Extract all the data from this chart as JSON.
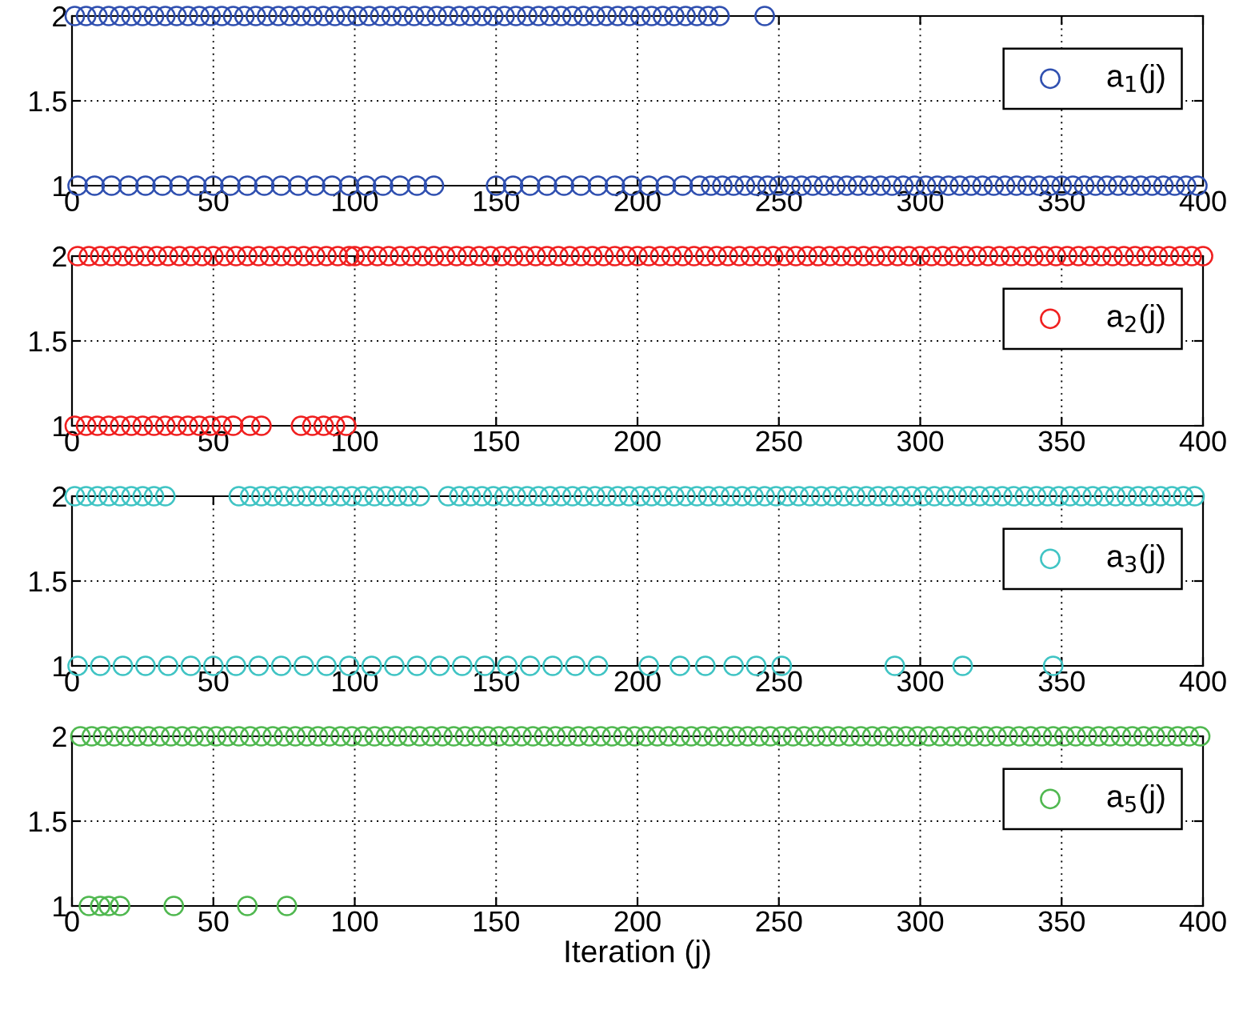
{
  "chart_data": [
    {
      "type": "scatter",
      "marker": "circle",
      "grid": true,
      "legend": "top right",
      "xlim": [
        0,
        400
      ],
      "xticks": [
        0,
        50,
        100,
        150,
        200,
        250,
        300,
        350,
        400
      ],
      "ylim": [
        1,
        2
      ],
      "yticks": [
        1,
        1.5,
        2
      ],
      "series": [
        {
          "name": "a$_{1}$(j)",
          "color": "#3050b0",
          "x": [
            1,
            5,
            9,
            13,
            17,
            21,
            25,
            29,
            33,
            37,
            41,
            45,
            49,
            53,
            57,
            61,
            65,
            69,
            73,
            77,
            81,
            85,
            89,
            93,
            97,
            101,
            105,
            109,
            113,
            117,
            121,
            125,
            129,
            133,
            137,
            141,
            145,
            149,
            153,
            157,
            161,
            165,
            169,
            173,
            177,
            181,
            185,
            189,
            193,
            197,
            201,
            205,
            209,
            213,
            217,
            221,
            225,
            229,
            245,
            2,
            8,
            14,
            20,
            26,
            32,
            38,
            44,
            50,
            56,
            62,
            68,
            74,
            80,
            86,
            92,
            98,
            104,
            110,
            116,
            122,
            128,
            150,
            156,
            162,
            168,
            174,
            180,
            186,
            192,
            198,
            204,
            210,
            216,
            222,
            226,
            230,
            234,
            238,
            242,
            246,
            250,
            254,
            258,
            262,
            266,
            270,
            274,
            278,
            282,
            286,
            290,
            294,
            298,
            302,
            306,
            310,
            314,
            318,
            322,
            326,
            330,
            334,
            338,
            342,
            346,
            350,
            354,
            358,
            362,
            366,
            370,
            374,
            378,
            382,
            386,
            390,
            394,
            398
          ],
          "values": [
            2,
            2,
            2,
            2,
            2,
            2,
            2,
            2,
            2,
            2,
            2,
            2,
            2,
            2,
            2,
            2,
            2,
            2,
            2,
            2,
            2,
            2,
            2,
            2,
            2,
            2,
            2,
            2,
            2,
            2,
            2,
            2,
            2,
            2,
            2,
            2,
            2,
            2,
            2,
            2,
            2,
            2,
            2,
            2,
            2,
            2,
            2,
            2,
            2,
            2,
            2,
            2,
            2,
            2,
            2,
            2,
            2,
            2,
            2,
            1,
            1,
            1,
            1,
            1,
            1,
            1,
            1,
            1,
            1,
            1,
            1,
            1,
            1,
            1,
            1,
            1,
            1,
            1,
            1,
            1,
            1,
            1,
            1,
            1,
            1,
            1,
            1,
            1,
            1,
            1,
            1,
            1,
            1,
            1,
            1,
            1,
            1,
            1,
            1,
            1,
            1,
            1,
            1,
            1,
            1,
            1,
            1,
            1,
            1,
            1,
            1,
            1,
            1,
            1,
            1,
            1,
            1,
            1,
            1,
            1,
            1,
            1,
            1,
            1,
            1,
            1,
            1,
            1,
            1,
            1,
            1,
            1,
            1,
            1,
            1,
            1,
            1,
            1
          ]
        }
      ]
    },
    {
      "type": "scatter",
      "marker": "circle",
      "grid": true,
      "legend": "top right",
      "xlim": [
        0,
        400
      ],
      "xticks": [
        0,
        50,
        100,
        150,
        200,
        250,
        300,
        350,
        400
      ],
      "ylim": [
        1,
        2
      ],
      "yticks": [
        1,
        1.5,
        2
      ],
      "series": [
        {
          "name": "a$_{2}$(j)",
          "color": "#f02020",
          "x": [
            1,
            5,
            9,
            13,
            17,
            21,
            25,
            29,
            33,
            37,
            41,
            45,
            49,
            53,
            57,
            63,
            67,
            81,
            85,
            89,
            93,
            97,
            2,
            6,
            10,
            14,
            18,
            22,
            26,
            30,
            34,
            38,
            42,
            46,
            50,
            54,
            58,
            62,
            66,
            70,
            74,
            78,
            82,
            86,
            90,
            94,
            98,
            100,
            104,
            108,
            112,
            116,
            120,
            124,
            128,
            132,
            136,
            140,
            144,
            148,
            152,
            156,
            160,
            164,
            168,
            172,
            176,
            180,
            184,
            188,
            192,
            196,
            200,
            204,
            208,
            212,
            216,
            220,
            224,
            228,
            232,
            236,
            240,
            244,
            248,
            252,
            256,
            260,
            264,
            268,
            272,
            276,
            280,
            284,
            288,
            292,
            296,
            300,
            304,
            308,
            312,
            316,
            320,
            324,
            328,
            332,
            336,
            340,
            344,
            348,
            352,
            356,
            360,
            364,
            368,
            372,
            376,
            380,
            384,
            388,
            392,
            396,
            400
          ],
          "values": [
            1,
            1,
            1,
            1,
            1,
            1,
            1,
            1,
            1,
            1,
            1,
            1,
            1,
            1,
            1,
            1,
            1,
            1,
            1,
            1,
            1,
            1,
            2,
            2,
            2,
            2,
            2,
            2,
            2,
            2,
            2,
            2,
            2,
            2,
            2,
            2,
            2,
            2,
            2,
            2,
            2,
            2,
            2,
            2,
            2,
            2,
            2,
            2,
            2,
            2,
            2,
            2,
            2,
            2,
            2,
            2,
            2,
            2,
            2,
            2,
            2,
            2,
            2,
            2,
            2,
            2,
            2,
            2,
            2,
            2,
            2,
            2,
            2,
            2,
            2,
            2,
            2,
            2,
            2,
            2,
            2,
            2,
            2,
            2,
            2,
            2,
            2,
            2,
            2,
            2,
            2,
            2,
            2,
            2,
            2,
            2,
            2,
            2,
            2,
            2,
            2,
            2,
            2,
            2,
            2,
            2,
            2,
            2,
            2,
            2,
            2,
            2,
            2,
            2,
            2,
            2,
            2,
            2,
            2,
            2,
            2,
            2,
            2
          ]
        }
      ]
    },
    {
      "type": "scatter",
      "marker": "circle",
      "grid": true,
      "legend": "top right",
      "xlim": [
        0,
        400
      ],
      "xticks": [
        0,
        50,
        100,
        150,
        200,
        250,
        300,
        350,
        400
      ],
      "ylim": [
        1,
        2
      ],
      "yticks": [
        1,
        1.5,
        2
      ],
      "series": [
        {
          "name": "a$_{3}$(j)",
          "color": "#40c4c4",
          "x": [
            1,
            5,
            9,
            13,
            17,
            21,
            25,
            29,
            33,
            59,
            63,
            67,
            71,
            75,
            79,
            83,
            87,
            91,
            95,
            99,
            103,
            107,
            111,
            115,
            119,
            123,
            133,
            137,
            141,
            145,
            149,
            153,
            157,
            161,
            165,
            169,
            173,
            177,
            181,
            185,
            189,
            193,
            197,
            201,
            205,
            209,
            213,
            217,
            221,
            225,
            229,
            233,
            237,
            241,
            245,
            249,
            253,
            257,
            261,
            265,
            269,
            273,
            277,
            281,
            285,
            289,
            293,
            297,
            301,
            305,
            309,
            313,
            317,
            321,
            325,
            329,
            333,
            337,
            341,
            345,
            349,
            353,
            357,
            361,
            365,
            369,
            373,
            377,
            381,
            385,
            389,
            393,
            397,
            2,
            10,
            18,
            26,
            34,
            42,
            50,
            58,
            66,
            74,
            82,
            90,
            98,
            106,
            114,
            122,
            130,
            138,
            146,
            154,
            162,
            170,
            178,
            186,
            204,
            215,
            224,
            234,
            242,
            251,
            291,
            315,
            347
          ],
          "values": [
            2,
            2,
            2,
            2,
            2,
            2,
            2,
            2,
            2,
            2,
            2,
            2,
            2,
            2,
            2,
            2,
            2,
            2,
            2,
            2,
            2,
            2,
            2,
            2,
            2,
            2,
            2,
            2,
            2,
            2,
            2,
            2,
            2,
            2,
            2,
            2,
            2,
            2,
            2,
            2,
            2,
            2,
            2,
            2,
            2,
            2,
            2,
            2,
            2,
            2,
            2,
            2,
            2,
            2,
            2,
            2,
            2,
            2,
            2,
            2,
            2,
            2,
            2,
            2,
            2,
            2,
            2,
            2,
            2,
            2,
            2,
            2,
            2,
            2,
            2,
            2,
            2,
            2,
            2,
            2,
            2,
            2,
            2,
            2,
            2,
            2,
            2,
            2,
            2,
            2,
            2,
            2,
            2,
            1,
            1,
            1,
            1,
            1,
            1,
            1,
            1,
            1,
            1,
            1,
            1,
            1,
            1,
            1,
            1,
            1,
            1,
            1,
            1,
            1,
            1,
            1,
            1,
            1,
            1,
            1,
            1,
            1,
            1,
            1,
            1,
            1
          ]
        }
      ]
    },
    {
      "type": "scatter",
      "marker": "circle",
      "grid": true,
      "legend": "top right",
      "xlim": [
        0,
        400
      ],
      "xticks": [
        0,
        50,
        100,
        150,
        200,
        250,
        300,
        350,
        400
      ],
      "ylim": [
        1,
        2
      ],
      "yticks": [
        1,
        1.5,
        2
      ],
      "xlabel": "Iteration (j)",
      "series": [
        {
          "name": "a$_{5}$(j)",
          "color": "#50b850",
          "x": [
            6,
            10,
            13,
            17,
            36,
            62,
            76,
            3,
            7,
            11,
            15,
            19,
            23,
            27,
            31,
            35,
            39,
            43,
            47,
            51,
            55,
            59,
            63,
            67,
            71,
            75,
            79,
            83,
            87,
            91,
            95,
            99,
            103,
            107,
            111,
            115,
            119,
            123,
            127,
            131,
            135,
            139,
            143,
            147,
            151,
            155,
            159,
            163,
            167,
            171,
            175,
            179,
            183,
            187,
            191,
            195,
            199,
            203,
            207,
            211,
            215,
            219,
            223,
            227,
            231,
            235,
            239,
            243,
            247,
            251,
            255,
            259,
            263,
            267,
            271,
            275,
            279,
            283,
            287,
            291,
            295,
            299,
            303,
            307,
            311,
            315,
            319,
            323,
            327,
            331,
            335,
            339,
            343,
            347,
            351,
            355,
            359,
            363,
            367,
            371,
            375,
            379,
            383,
            387,
            391,
            395,
            399
          ],
          "values": [
            1,
            1,
            1,
            1,
            1,
            1,
            1,
            2,
            2,
            2,
            2,
            2,
            2,
            2,
            2,
            2,
            2,
            2,
            2,
            2,
            2,
            2,
            2,
            2,
            2,
            2,
            2,
            2,
            2,
            2,
            2,
            2,
            2,
            2,
            2,
            2,
            2,
            2,
            2,
            2,
            2,
            2,
            2,
            2,
            2,
            2,
            2,
            2,
            2,
            2,
            2,
            2,
            2,
            2,
            2,
            2,
            2,
            2,
            2,
            2,
            2,
            2,
            2,
            2,
            2,
            2,
            2,
            2,
            2,
            2,
            2,
            2,
            2,
            2,
            2,
            2,
            2,
            2,
            2,
            2,
            2,
            2,
            2,
            2,
            2,
            2,
            2,
            2,
            2,
            2,
            2,
            2,
            2,
            2,
            2,
            2,
            2,
            2,
            2,
            2,
            2,
            2,
            2,
            2,
            2,
            2,
            2
          ]
        }
      ]
    }
  ]
}
